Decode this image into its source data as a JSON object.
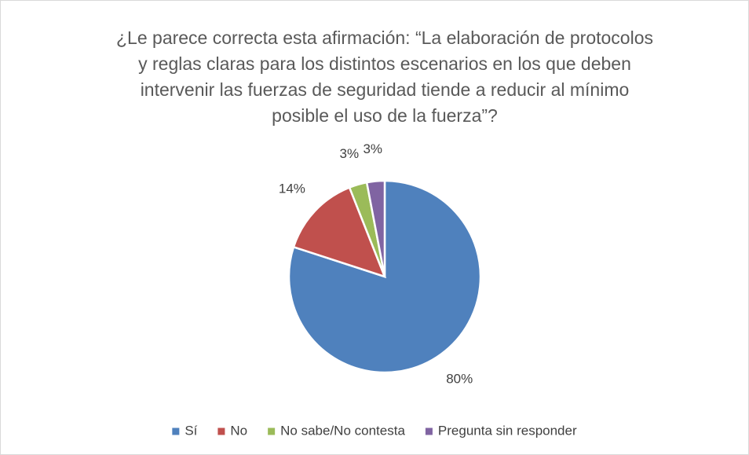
{
  "chart_data": {
    "type": "pie",
    "title": "¿Le parece correcta esta afirmación: “La elaboración de protocolos y reglas claras para los distintos escenarios en los que deben intervenir las fuerzas de seguridad tiende a reducir al mínimo posible el uso de la fuerza”?",
    "categories": [
      "Sí",
      "No",
      "No sabe/No contesta",
      "Pregunta sin responder"
    ],
    "values": [
      80,
      14,
      3,
      3
    ],
    "value_labels": [
      "80%",
      "14%",
      "3%",
      "3%"
    ],
    "colors": [
      "#4f81bd",
      "#c0504d",
      "#9bbb59",
      "#8064a2"
    ],
    "legend": "bottom"
  }
}
